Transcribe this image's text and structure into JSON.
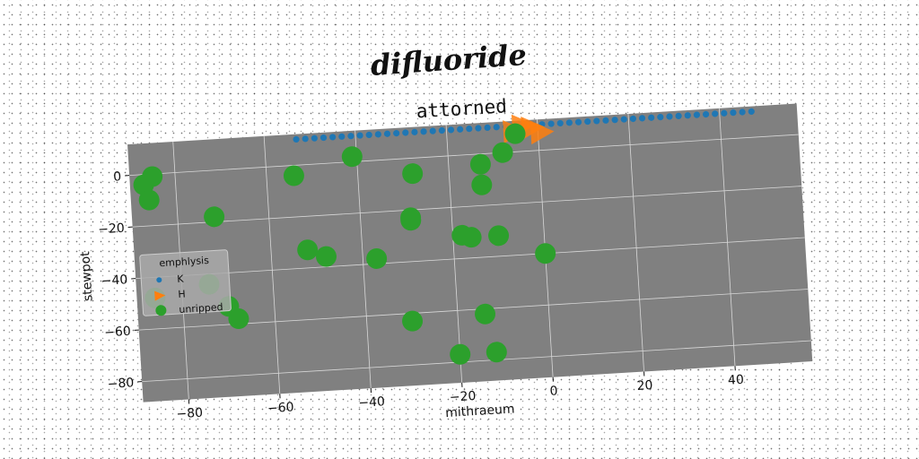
{
  "chart_data": {
    "type": "scatter",
    "suptitle": "difluoride",
    "title": "attorned",
    "xlabel": "mithraeum",
    "ylabel": "stewpot",
    "xlim": [
      -90,
      57
    ],
    "ylim": [
      -88,
      12
    ],
    "xticks": [
      -80,
      -60,
      -40,
      -20,
      0,
      20,
      40
    ],
    "yticks": [
      -80,
      -60,
      -40,
      -20,
      0
    ],
    "xtick_labels": [
      "−80",
      "−60",
      "−40",
      "−20",
      "0",
      "20",
      "40"
    ],
    "ytick_labels": [
      "−80",
      "−60",
      "−40",
      "−20",
      "0"
    ],
    "grid": true,
    "background": "#808080",
    "legend": {
      "title": "emphlysis",
      "placement": "center-left",
      "entries": [
        "K",
        "H",
        "unripped"
      ]
    },
    "series": [
      {
        "name": "K",
        "marker": "circle-small",
        "color": "#1f77b4",
        "x": [
          -53,
          -51,
          -49,
          -47,
          -45,
          -43,
          -41,
          -39,
          -37,
          -35,
          -33,
          -31,
          -29,
          -27,
          -25,
          -23,
          -21,
          -19,
          -17,
          -15,
          -13,
          -11,
          -9,
          -7,
          -5,
          -3,
          -1,
          1,
          3,
          5,
          7,
          9,
          11,
          13,
          15,
          17,
          19,
          21,
          23,
          25,
          27,
          29,
          31,
          33,
          35,
          37,
          39,
          41,
          43,
          45,
          47
        ],
        "y": [
          10,
          10,
          10,
          10,
          10,
          10,
          10,
          10,
          10,
          10,
          10,
          10,
          10,
          10,
          10,
          10,
          10,
          10,
          10,
          10,
          10,
          10,
          10,
          10,
          10,
          10,
          10,
          10,
          10,
          10,
          10,
          10,
          10,
          10,
          10,
          10,
          10,
          10,
          10,
          10,
          10,
          10,
          10,
          10,
          10,
          10,
          10,
          10,
          10,
          10,
          10
        ]
      },
      {
        "name": "H",
        "marker": "triangle-right",
        "color": "#ff7f0e",
        "x": [
          -5,
          -3,
          -1,
          1
        ],
        "y": [
          8,
          10,
          9,
          7
        ]
      },
      {
        "name": "unripped",
        "marker": "circle-large",
        "color": "#2ca02c",
        "x": [
          -87,
          -85,
          -86,
          -72,
          -54,
          -41,
          -29,
          -28,
          -13,
          -8,
          -5,
          -13,
          -29,
          -18,
          -16,
          -10,
          -52,
          -48,
          -37,
          0,
          -74,
          -70,
          -68,
          -86,
          -30,
          -14,
          -20,
          -12
        ],
        "y": [
          -4,
          -1,
          -10,
          -18,
          -4,
          2,
          -24,
          -6,
          -12,
          0,
          7,
          -4,
          -23,
          -31,
          -32,
          -32,
          -33,
          -36,
          -38,
          -40,
          -44,
          -53,
          -58,
          -48,
          -63,
          -62,
          -77,
          -77
        ]
      }
    ]
  }
}
